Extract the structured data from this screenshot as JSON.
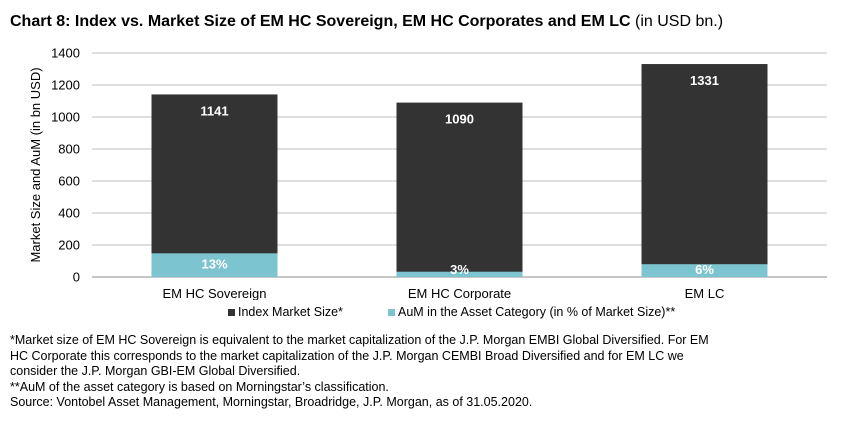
{
  "title": {
    "bold": "Chart 8: Index vs. Market Size of EM HC Sovereign, EM HC Corporates and EM LC",
    "unit": "(in USD bn.)"
  },
  "chart_data": {
    "type": "bar",
    "stacked_overlay": true,
    "categories": [
      "EM HC Sovereign",
      "EM HC Corporate",
      "EM LC"
    ],
    "series": [
      {
        "name": "Index Market Size*",
        "values": [
          1141,
          1090,
          1331
        ],
        "labels": [
          "1141",
          "1090",
          "1331"
        ],
        "color": "#333333"
      },
      {
        "name": "AuM in the Asset Category (in % of Market Size)**",
        "values": [
          148,
          33,
          80
        ],
        "labels": [
          "13%",
          "3%",
          "6%"
        ],
        "color": "#7cc4d0"
      }
    ],
    "ylabel": "Market Size and AuM (in bn USD)",
    "ylim": [
      0,
      1400
    ],
    "yticks": [
      0,
      200,
      400,
      600,
      800,
      1000,
      1200,
      1400
    ],
    "grid": true,
    "legend_position": "bottom"
  },
  "notes": [
    "*Market size of EM HC Sovereign is equivalent to the market capitalization of the J.P. Morgan EMBI Global Diversified. For EM",
    "HC Corporate this corresponds to the market capitalization of the J.P. Morgan CEMBI Broad Diversified and for EM LC we",
    "consider the J.P. Morgan GBI-EM Global Diversified.",
    "**AuM of the asset category is based on Morningstar’s classification.",
    "Source: Vontobel Asset Management, Morningstar, Broadridge, J.P. Morgan, as of 31.05.2020."
  ]
}
